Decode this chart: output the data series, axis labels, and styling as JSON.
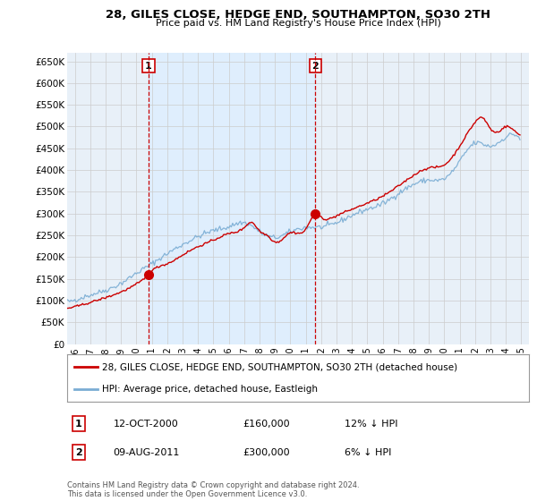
{
  "title": "28, GILES CLOSE, HEDGE END, SOUTHAMPTON, SO30 2TH",
  "subtitle": "Price paid vs. HM Land Registry's House Price Index (HPI)",
  "legend_label_red": "28, GILES CLOSE, HEDGE END, SOUTHAMPTON, SO30 2TH (detached house)",
  "legend_label_blue": "HPI: Average price, detached house, Eastleigh",
  "annotation1_date": "12-OCT-2000",
  "annotation1_price": "£160,000",
  "annotation1_hpi": "12% ↓ HPI",
  "annotation2_date": "09-AUG-2011",
  "annotation2_price": "£300,000",
  "annotation2_hpi": "6% ↓ HPI",
  "footer": "Contains HM Land Registry data © Crown copyright and database right 2024.\nThis data is licensed under the Open Government Licence v3.0.",
  "xlim": [
    1995.5,
    2025.5
  ],
  "ylim": [
    0,
    670000
  ],
  "yticks": [
    0,
    50000,
    100000,
    150000,
    200000,
    250000,
    300000,
    350000,
    400000,
    450000,
    500000,
    550000,
    600000,
    650000
  ],
  "ytick_labels": [
    "£0",
    "£50K",
    "£100K",
    "£150K",
    "£200K",
    "£250K",
    "£300K",
    "£350K",
    "£400K",
    "£450K",
    "£500K",
    "£550K",
    "£600K",
    "£650K"
  ],
  "xticks": [
    1996,
    1997,
    1998,
    1999,
    2000,
    2001,
    2002,
    2003,
    2004,
    2005,
    2006,
    2007,
    2008,
    2009,
    2010,
    2011,
    2012,
    2013,
    2014,
    2015,
    2016,
    2017,
    2018,
    2019,
    2020,
    2021,
    2022,
    2023,
    2024,
    2025
  ],
  "sale1_x": 2000.79,
  "sale1_y": 160000,
  "sale2_x": 2011.62,
  "sale2_y": 300000,
  "red_color": "#cc0000",
  "blue_color": "#7aadd4",
  "blue_fill_color": "#ddeeff",
  "vline_color": "#cc0000",
  "grid_color": "#cccccc",
  "background_color": "#ffffff",
  "plot_bg_color": "#e8f0f8"
}
